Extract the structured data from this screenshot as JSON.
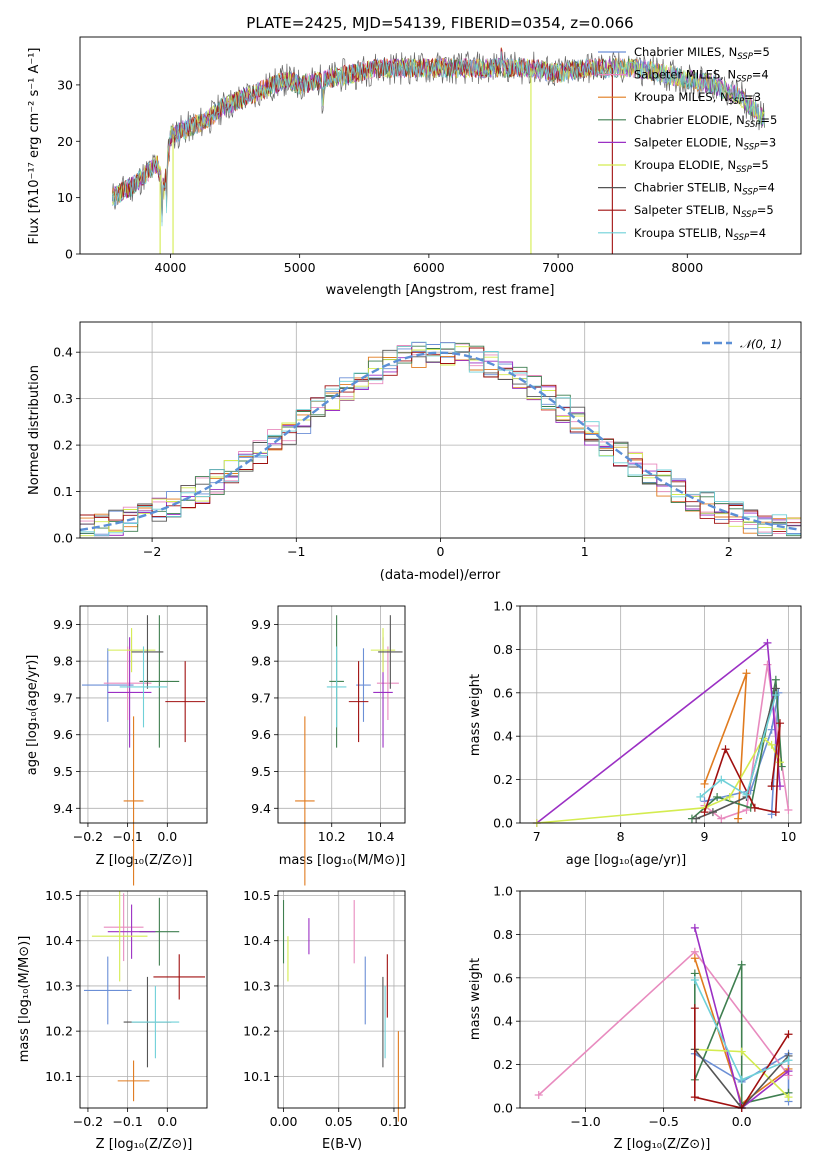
{
  "colors": [
    "#6b8fd6",
    "#e88bbf",
    "#e07b1f",
    "#3f7f50",
    "#9b30c4",
    "#d4ec50",
    "#555555",
    "#a01010",
    "#6fd0d8"
  ],
  "spectrum_chart": {
    "title": "PLATE=2425, MJD=54139, FIBERID=0354, z=0.066",
    "xlabel": "wavelength [Angstrom, rest frame]",
    "ylabel": "Flux [fλ10⁻¹⁷ erg cm⁻² s⁻¹ A⁻¹]",
    "legend_items": [
      {
        "name": "Chabrier MILES, N_SSP=5",
        "base": "Chabrier MILES, N",
        "sub": "SSP",
        "tail": "=5"
      },
      {
        "name": "Salpeter MILES, N_SSP=4",
        "base": "Salpeter MILES, N",
        "sub": "SSP",
        "tail": "=4"
      },
      {
        "name": "Kroupa MILES, N_SSP=3",
        "base": "Kroupa MILES, N",
        "sub": "SSP",
        "tail": "=3"
      },
      {
        "name": "Chabrier ELODIE, N_SSP=5",
        "base": "Chabrier ELODIE, N",
        "sub": "SSP",
        "tail": "=5"
      },
      {
        "name": "Salpeter ELODIE, N_SSP=3",
        "base": "Salpeter ELODIE, N",
        "sub": "SSP",
        "tail": "=3"
      },
      {
        "name": "Kroupa ELODIE, N_SSP=5",
        "base": "Kroupa ELODIE, N",
        "sub": "SSP",
        "tail": "=5"
      },
      {
        "name": "Chabrier STELIB, N_SSP=4",
        "base": "Chabrier STELIB, N",
        "sub": "SSP",
        "tail": "=4"
      },
      {
        "name": "Salpeter STELIB, N_SSP=5",
        "base": "Salpeter STELIB, N",
        "sub": "SSP",
        "tail": "=5"
      },
      {
        "name": "Kroupa STELIB, N_SSP=4",
        "base": "Kroupa STELIB, N",
        "sub": "SSP",
        "tail": "=4"
      }
    ]
  },
  "hist_chart": {
    "xlabel": "(data-model)/error",
    "ylabel": "Normed distribution",
    "legend": "𝒩(0, 1)"
  },
  "ages_z": {
    "xlabel": "Z [log₁₀(Z/Z⊙)]",
    "ylabel": "age  [log₁₀(age/yr)]"
  },
  "ages_mass": {
    "xlabel": "mass [log₁₀(M/M⊙)]"
  },
  "weight_age": {
    "xlabel": "age  [log₁₀(age/yr)]",
    "ylabel": "mass weight"
  },
  "mass_z": {
    "xlabel": "Z [log₁₀(Z/Z⊙)]",
    "ylabel": "mass [log₁₀(M/M⊙)]"
  },
  "mass_ebv": {
    "xlabel": "E(B-V)"
  },
  "weight_z": {
    "xlabel": "Z [log₁₀(Z/Z⊙)]",
    "ylabel": "mass weight"
  },
  "chart_data": [
    {
      "type": "line",
      "title": "PLATE=2425, MJD=54139, FIBERID=0354, z=0.066",
      "xlabel": "wavelength [Angstrom, rest frame]",
      "ylabel": "Flux [fλ10⁻¹⁷ erg cm⁻² s⁻¹ A⁻¹]",
      "xlim": [
        3300,
        8880
      ],
      "ylim": [
        0,
        38.5
      ],
      "xticks": [
        4000,
        5000,
        6000,
        7000,
        8000
      ],
      "yticks": [
        0,
        10,
        20,
        30
      ],
      "grid": false,
      "legend_position": "right",
      "series_names": [
        "Chabrier MILES, N_SSP=5",
        "Salpeter MILES, N_SSP=4",
        "Kroupa MILES, N_SSP=3",
        "Chabrier ELODIE, N_SSP=5",
        "Salpeter ELODIE, N_SSP=3",
        "Kroupa ELODIE, N_SSP=5",
        "Chabrier STELIB, N_SSP=4",
        "Salpeter STELIB, N_SSP=5",
        "Kroupa STELIB, N_SSP=4"
      ],
      "continuum_x": [
        3550,
        3700,
        3800,
        3900,
        3950,
        4000,
        4100,
        4200,
        4300,
        4400,
        4500,
        4700,
        4900,
        5000,
        5200,
        5400,
        5600,
        5800,
        6000,
        6200,
        6400,
        6600,
        6800,
        7000,
        7200,
        7400,
        7600,
        7800,
        8000,
        8200,
        8400,
        8600
      ],
      "continuum_y": [
        10,
        12,
        14,
        16,
        11,
        21,
        22,
        23,
        24,
        26,
        27,
        29,
        31,
        30,
        31,
        32,
        33,
        33,
        33,
        33,
        33,
        33,
        33,
        32,
        33,
        33,
        33,
        32,
        31,
        30,
        28,
        24
      ]
    },
    {
      "type": "bar",
      "xlabel": "(data-model)/error",
      "ylabel": "Normed distribution",
      "xlim": [
        -2.5,
        2.5
      ],
      "ylim": [
        0,
        0.465
      ],
      "xticks": [
        -2,
        -1,
        0,
        1,
        2
      ],
      "yticks": [
        0.0,
        0.1,
        0.2,
        0.3,
        0.4
      ],
      "grid": true,
      "legend_position": "top-right",
      "bin_width": 0.1,
      "reference_curve": "N(0,1)"
    },
    {
      "type": "scatter",
      "xlabel": "Z [log₁₀(Z/Z⊙)]",
      "ylabel": "age  [log₁₀(age/yr)]",
      "xlim": [
        -0.22,
        0.1
      ],
      "ylim": [
        9.36,
        9.95
      ],
      "xticks": [
        -0.2,
        -0.1,
        0.0
      ],
      "yticks": [
        9.4,
        9.5,
        9.6,
        9.7,
        9.8,
        9.9
      ],
      "grid": true,
      "points": [
        {
          "x": -0.15,
          "y": 9.735,
          "xerr": 0.065,
          "yerr": 0.1
        },
        {
          "x": -0.1,
          "y": 9.74,
          "xerr": 0.06,
          "yerr": 0.1
        },
        {
          "x": -0.085,
          "y": 9.42,
          "xerr": 0.025,
          "yerr": 0.23
        },
        {
          "x": -0.02,
          "y": 9.745,
          "xerr": 0.05,
          "yerr": 0.18
        },
        {
          "x": -0.095,
          "y": 9.715,
          "xerr": 0.055,
          "yerr": 0.15
        },
        {
          "x": -0.09,
          "y": 9.83,
          "xerr": 0.06,
          "yerr": 0.06
        },
        {
          "x": -0.05,
          "y": 9.825,
          "xerr": 0.04,
          "yerr": 0.1
        },
        {
          "x": 0.045,
          "y": 9.69,
          "xerr": 0.05,
          "yerr": 0.11
        },
        {
          "x": -0.06,
          "y": 9.73,
          "xerr": 0.06,
          "yerr": 0.11
        }
      ]
    },
    {
      "type": "scatter",
      "xlabel": "mass [log₁₀(M/M⊙)]",
      "ylabel": "",
      "xlim": [
        9.98,
        10.5
      ],
      "ylim": [
        9.36,
        9.95
      ],
      "xticks": [
        10.2,
        10.4
      ],
      "yticks": [
        9.4,
        9.5,
        9.6,
        9.7,
        9.8,
        9.9
      ],
      "grid": true,
      "points": [
        {
          "x": 10.33,
          "y": 9.735,
          "xerr": 0.03,
          "yerr": 0.1
        },
        {
          "x": 10.43,
          "y": 9.74,
          "xerr": 0.045,
          "yerr": 0.1
        },
        {
          "x": 10.09,
          "y": 9.42,
          "xerr": 0.04,
          "yerr": 0.23
        },
        {
          "x": 10.22,
          "y": 9.745,
          "xerr": 0.03,
          "yerr": 0.18
        },
        {
          "x": 10.41,
          "y": 9.715,
          "xerr": 0.04,
          "yerr": 0.15
        },
        {
          "x": 10.41,
          "y": 9.83,
          "xerr": 0.05,
          "yerr": 0.06
        },
        {
          "x": 10.44,
          "y": 9.825,
          "xerr": 0.05,
          "yerr": 0.1
        },
        {
          "x": 10.31,
          "y": 9.69,
          "xerr": 0.04,
          "yerr": 0.11
        },
        {
          "x": 10.22,
          "y": 9.73,
          "xerr": 0.04,
          "yerr": 0.11
        }
      ]
    },
    {
      "type": "line",
      "xlabel": "age  [log₁₀(age/yr)]",
      "ylabel": "mass weight",
      "xlim": [
        6.8,
        10.15
      ],
      "ylim": [
        0,
        1
      ],
      "xticks": [
        7,
        8,
        9,
        10
      ],
      "yticks": [
        0.0,
        0.2,
        0.4,
        0.6,
        0.8,
        1.0
      ],
      "grid": true,
      "series": [
        {
          "x": [
            9.0,
            9.55,
            9.8,
            9.88,
            9.8
          ],
          "y": [
            0.1,
            0.15,
            0.43,
            0.6,
            0.04
          ]
        },
        {
          "x": 9.0,
          "y2": 0,
          "xs": [
            9.0,
            9.2,
            9.5,
            9.75,
            10.0
          ],
          "ys": [
            0.08,
            0.02,
            0.06,
            0.73,
            0.06
          ]
        },
        {
          "xs": [
            9.0,
            9.5,
            9.4
          ],
          "ys": [
            0.18,
            0.69,
            0.02
          ]
        },
        {
          "xs": [
            8.85,
            9.15,
            9.55,
            9.85,
            9.92
          ],
          "ys": [
            0.02,
            0.12,
            0.07,
            0.66,
            0.26
          ]
        },
        {
          "xs": [
            7.0,
            9.75,
            9.9
          ],
          "ys": [
            0.0,
            0.83,
            0.17
          ]
        },
        {
          "xs": [
            7.0,
            9.0,
            9.3,
            9.7,
            9.8,
            9.9
          ],
          "ys": [
            0.0,
            0.07,
            0.12,
            0.39,
            0.36,
            0.28
          ]
        },
        {
          "xs": [
            8.9,
            9.1,
            9.5,
            9.85
          ],
          "ys": [
            0.02,
            0.05,
            0.12,
            0.62
          ]
        },
        {
          "xs": [
            9.0,
            9.25,
            9.6,
            9.85,
            9.9,
            9.8
          ],
          "ys": [
            0.05,
            0.34,
            0.07,
            0.05,
            0.46,
            0.17
          ]
        },
        {
          "xs": [
            8.95,
            9.2,
            9.5,
            9.85
          ],
          "ys": [
            0.12,
            0.2,
            0.13,
            0.59
          ]
        }
      ]
    },
    {
      "type": "scatter",
      "xlabel": "Z [log₁₀(Z/Z⊙)]",
      "ylabel": "mass [log₁₀(M/M⊙)]",
      "xlim": [
        -0.22,
        0.1
      ],
      "ylim": [
        10.03,
        10.51
      ],
      "xticks": [
        -0.2,
        -0.1,
        0.0
      ],
      "yticks": [
        10.1,
        10.2,
        10.3,
        10.4,
        10.5
      ],
      "grid": true,
      "points": [
        {
          "x": -0.15,
          "y": 10.29,
          "xerr": 0.06,
          "yerr": 0.075
        },
        {
          "x": -0.11,
          "y": 10.43,
          "xerr": 0.05,
          "yerr": 0.075
        },
        {
          "x": -0.085,
          "y": 10.09,
          "xerr": 0.04,
          "yerr": 0.045
        },
        {
          "x": -0.02,
          "y": 10.42,
          "xerr": 0.05,
          "yerr": 0.075
        },
        {
          "x": -0.09,
          "y": 10.42,
          "xerr": 0.06,
          "yerr": 0.06
        },
        {
          "x": -0.12,
          "y": 10.41,
          "xerr": 0.07,
          "yerr": 0.1
        },
        {
          "x": -0.05,
          "y": 10.22,
          "xerr": 0.06,
          "yerr": 0.1
        },
        {
          "x": 0.03,
          "y": 10.32,
          "xerr": 0.065,
          "yerr": 0.05
        },
        {
          "x": -0.03,
          "y": 10.22,
          "xerr": 0.06,
          "yerr": 0.08
        }
      ]
    },
    {
      "type": "scatter",
      "xlabel": "E(B-V)",
      "ylabel": "",
      "xlim": [
        -0.005,
        0.11
      ],
      "ylim": [
        10.03,
        10.51
      ],
      "xticks": [
        0.0,
        0.05,
        0.1
      ],
      "yticks": [
        10.1,
        10.2,
        10.3,
        10.4,
        10.5
      ],
      "grid": true,
      "points": [
        {
          "x": 0.074,
          "y": 10.29,
          "yerr": 0.075
        },
        {
          "x": 0.064,
          "y": 10.42,
          "yerr": 0.07
        },
        {
          "x": 0.104,
          "y": 10.1,
          "yerr": 0.1
        },
        {
          "x": 0.0,
          "y": 10.42,
          "yerr": 0.07
        },
        {
          "x": 0.023,
          "y": 10.41,
          "yerr": 0.04
        },
        {
          "x": 0.004,
          "y": 10.36,
          "yerr": 0.05
        },
        {
          "x": 0.09,
          "y": 10.22,
          "yerr": 0.1
        },
        {
          "x": 0.094,
          "y": 10.3,
          "yerr": 0.07
        },
        {
          "x": 0.092,
          "y": 10.22,
          "yerr": 0.08
        }
      ]
    },
    {
      "type": "line",
      "xlabel": "Z [log₁₀(Z/Z⊙)]",
      "ylabel": "mass weight",
      "xlim": [
        -1.42,
        0.38
      ],
      "ylim": [
        0,
        1
      ],
      "xticks": [
        -1.0,
        -0.5,
        0.0
      ],
      "yticks": [
        0.0,
        0.2,
        0.4,
        0.6,
        0.8,
        1.0
      ],
      "grid": true,
      "series": [
        {
          "xs": [
            -0.3,
            0.0,
            0.3,
            0.3
          ],
          "ys": [
            0.25,
            0.12,
            0.25,
            0.03
          ]
        },
        {
          "xs": [
            -1.3,
            -0.3,
            0.3
          ],
          "ys": [
            0.06,
            0.72,
            0.15
          ]
        },
        {
          "xs": [
            -0.3,
            0.0,
            0.3
          ],
          "ys": [
            0.69,
            0.02,
            0.18
          ]
        },
        {
          "xs": [
            -0.3,
            -0.3,
            0.0,
            0.0,
            0.3
          ],
          "ys": [
            0.62,
            0.13,
            0.66,
            0.02,
            0.07
          ]
        },
        {
          "xs": [
            -0.3,
            0.0,
            0.3
          ],
          "ys": [
            0.83,
            0.0,
            0.17
          ]
        },
        {
          "xs": [
            -0.3,
            0.0,
            0.3
          ],
          "ys": [
            0.27,
            0.26,
            0.05
          ]
        },
        {
          "xs": [
            -0.3,
            0.0,
            0.3
          ],
          "ys": [
            0.27,
            0.0,
            0.24
          ]
        },
        {
          "xs": [
            -0.3,
            -0.3,
            0.0,
            0.3
          ],
          "ys": [
            0.46,
            0.05,
            0.0,
            0.34
          ]
        },
        {
          "xs": [
            -0.3,
            0.0,
            0.3
          ],
          "ys": [
            0.59,
            0.13,
            0.22
          ]
        }
      ]
    }
  ]
}
